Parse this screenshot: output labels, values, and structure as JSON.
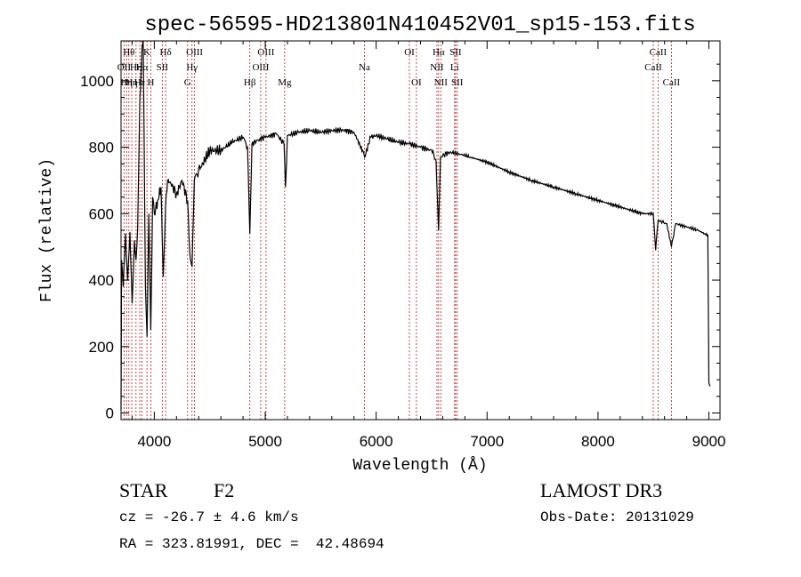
{
  "chart_data": {
    "type": "line",
    "title": "spec-56595-HD213801N410452V01_sp15-153.fits",
    "xlabel": "Wavelength (Å)",
    "ylabel": "Flux (relative)",
    "xlim": [
      3700,
      9100
    ],
    "ylim": [
      -20,
      1120
    ],
    "xticks": [
      4000,
      5000,
      6000,
      7000,
      8000,
      9000
    ],
    "yticks": [
      0,
      200,
      400,
      600,
      800,
      1000
    ],
    "xtick_labels": [
      "4000",
      "5000",
      "6000",
      "7000",
      "8000",
      "9000"
    ],
    "ytick_labels": [
      "0",
      "200",
      "400",
      "600",
      "800",
      "1000"
    ],
    "grid": false,
    "line_color": "#000000",
    "marker_color": "#b22222",
    "series": [
      {
        "name": "Flux",
        "x": [
          3700,
          3705,
          3720,
          3740,
          3760,
          3780,
          3800,
          3820,
          3835,
          3850,
          3870,
          3889,
          3900,
          3920,
          3934,
          3950,
          3968,
          3985,
          4000,
          4030,
          4060,
          4080,
          4101,
          4120,
          4150,
          4200,
          4250,
          4300,
          4320,
          4340,
          4360,
          4380,
          4420,
          4500,
          4600,
          4700,
          4800,
          4840,
          4861,
          4880,
          4950,
          5000,
          5100,
          5170,
          5183,
          5200,
          5300,
          5400,
          5500,
          5600,
          5700,
          5800,
          5890,
          5896,
          5950,
          6000,
          6100,
          6200,
          6300,
          6400,
          6500,
          6540,
          6563,
          6580,
          6650,
          6750,
          6850,
          7000,
          7200,
          7400,
          7600,
          7800,
          8000,
          8200,
          8400,
          8498,
          8520,
          8542,
          8580,
          8620,
          8662,
          8700,
          8800,
          8900,
          8960,
          8990,
          9000,
          9010
        ],
        "y": [
          10,
          460,
          380,
          540,
          400,
          545,
          330,
          520,
          460,
          560,
          950,
          1100,
          1120,
          380,
          230,
          600,
          250,
          650,
          600,
          640,
          680,
          410,
          620,
          700,
          690,
          660,
          700,
          640,
          480,
          440,
          700,
          720,
          740,
          790,
          790,
          815,
          830,
          800,
          540,
          810,
          825,
          830,
          840,
          810,
          680,
          835,
          845,
          850,
          845,
          850,
          852,
          845,
          780,
          770,
          830,
          835,
          825,
          815,
          810,
          800,
          790,
          760,
          550,
          770,
          785,
          780,
          770,
          755,
          725,
          700,
          680,
          660,
          640,
          620,
          600,
          600,
          490,
          580,
          575,
          570,
          500,
          570,
          560,
          550,
          540,
          535,
          90,
          80
        ]
      }
    ],
    "line_markers": [
      {
        "x": 3727,
        "label": "OII",
        "row": 2
      },
      {
        "x": 3750,
        "label": "Hη",
        "row": 3
      },
      {
        "x": 3771,
        "label": "Hθ",
        "row": 1
      },
      {
        "x": 3797,
        "label": "Hη",
        "row": 3
      },
      {
        "x": 3835,
        "label": "Hη",
        "row": 2
      },
      {
        "x": 3869,
        "label": "Hε",
        "row": 3
      },
      {
        "x": 3889,
        "label": "Hα",
        "row": 2
      },
      {
        "x": 3934,
        "label": "K",
        "row": 1
      },
      {
        "x": 3969,
        "label": "H",
        "row": 3
      },
      {
        "x": 4072,
        "label": "SII",
        "row": 2
      },
      {
        "x": 4102,
        "label": "Hδ",
        "row": 1
      },
      {
        "x": 4300,
        "label": "G",
        "row": 3
      },
      {
        "x": 4340,
        "label": "Hγ",
        "row": 2
      },
      {
        "x": 4363,
        "label": "OIII",
        "row": 1
      },
      {
        "x": 4861,
        "label": "Hβ",
        "row": 3
      },
      {
        "x": 4959,
        "label": "OIII",
        "row": 2
      },
      {
        "x": 5007,
        "label": "OIII",
        "row": 1
      },
      {
        "x": 5175,
        "label": "Mg",
        "row": 3
      },
      {
        "x": 5894,
        "label": "Na",
        "row": 2
      },
      {
        "x": 6300,
        "label": "OI",
        "row": 1
      },
      {
        "x": 6363,
        "label": "OI",
        "row": 3
      },
      {
        "x": 6548,
        "label": "NII",
        "row": 2
      },
      {
        "x": 6563,
        "label": "Hα",
        "row": 1
      },
      {
        "x": 6583,
        "label": "NII",
        "row": 3
      },
      {
        "x": 6707,
        "label": "Li",
        "row": 2
      },
      {
        "x": 6716,
        "label": "SII",
        "row": 1
      },
      {
        "x": 6731,
        "label": "SII",
        "row": 3
      },
      {
        "x": 8498,
        "label": "CaII",
        "row": 2
      },
      {
        "x": 8542,
        "label": "CaII",
        "row": 1
      },
      {
        "x": 8662,
        "label": "CaII",
        "row": 3
      }
    ]
  },
  "footer": {
    "object_type": "STAR",
    "subclass": "F2",
    "survey": "LAMOST DR3",
    "redshift": "cz = -26.7 ± 4.6 km/s",
    "obs_date": "Obs-Date: 20131029",
    "coords": "RA = 323.81991, DEC =  42.48694"
  }
}
